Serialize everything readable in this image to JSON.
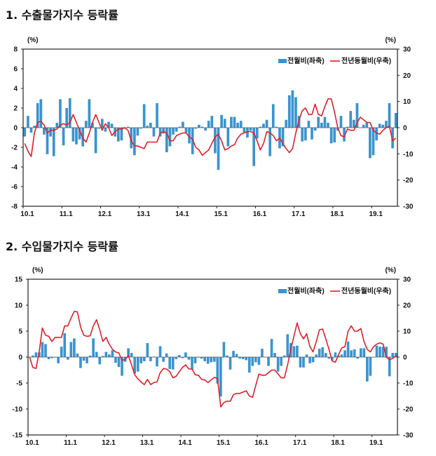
{
  "chart_data": [
    {
      "type": "bar+line",
      "title": "1. 수출물가지수 등락률",
      "left_unit": "(%)",
      "right_unit": "(%)",
      "ylim_left": [
        -8,
        8
      ],
      "yticks_left": [
        "8",
        "6",
        "4",
        "2",
        "0",
        "-2",
        "-4",
        "-6",
        "-8"
      ],
      "ylim_right": [
        -30,
        30
      ],
      "yticks_right": [
        "30",
        "20",
        "10",
        "0",
        "-10",
        "-20",
        "-30"
      ],
      "xtick_labels": [
        "10.1",
        "11.1",
        "12.1",
        "13.1",
        "14.1",
        "15.1",
        "16.1",
        "17.1",
        "18.1",
        "19.1"
      ],
      "x_start": "10.1",
      "legend_position": "top-right",
      "grid": false,
      "series": [
        {
          "name": "전월비(좌축)",
          "type": "bar",
          "axis": "left",
          "color": "#3a93d0",
          "values": [
            -0.9,
            1.2,
            -0.5,
            0.2,
            2.5,
            2.9,
            -0.7,
            -2.7,
            -0.9,
            -2.9,
            0.5,
            2.9,
            -1.8,
            2.0,
            3.0,
            -1.4,
            -1.7,
            -1.2,
            -1.9,
            0.7,
            2.9,
            0.5,
            -2.6,
            -0.1,
            0.9,
            -0.4,
            0.6,
            0.4,
            -0.9,
            -1.4,
            -1.3,
            -0.1,
            0.1,
            -2.1,
            -2.8,
            -0.8,
            -0.1,
            2.4,
            0.2,
            0.5,
            -0.9,
            2.5,
            -0.9,
            -0.6,
            -2.5,
            -1.9,
            -0.7,
            -0.4,
            0.1,
            0.6,
            -0.5,
            -1.6,
            -2.7,
            -0.1,
            0.3,
            0.1,
            -0.3,
            0.7,
            1.2,
            -2.6,
            -4.3,
            1.3,
            0.9,
            -1.9,
            1.1,
            1.1,
            0.5,
            0.7,
            -0.5,
            -1.0,
            -0.3,
            -3.9,
            -1.1,
            0.1,
            0.4,
            0.8,
            -2.9,
            2.4,
            0.1,
            -2.1,
            -1.9,
            0.8,
            3.3,
            3.8,
            3.1,
            1.2,
            -1.4,
            -1.3,
            0.7,
            -1.2,
            -0.3,
            1.1,
            0.5,
            1.1,
            0.5,
            -1.6,
            -1.5,
            -0.3,
            1.2,
            -1.4,
            0.1,
            1.7,
            0.8,
            2.5,
            0.0,
            0.3,
            0.5,
            -3.1,
            -2.8,
            -1.3,
            0.4,
            0.3,
            0.7,
            2.5,
            -2.1,
            1.5
          ]
        },
        {
          "name": "전년동월비(우축)",
          "type": "line",
          "axis": "right",
          "color": "#e0202a",
          "values": [
            -6,
            -9,
            -11,
            -2,
            2,
            2.5,
            1,
            -2,
            -1,
            -1,
            -0.5,
            1,
            1.5,
            1,
            2,
            5,
            2,
            -1,
            -4,
            -5.5,
            -2,
            2,
            5,
            2,
            -1,
            1.5,
            0,
            -3,
            -1.5,
            -0.5,
            -0.5,
            0,
            -1,
            -5,
            -7,
            -7,
            -7.5,
            -8,
            -5.5,
            -5.5,
            -5.5,
            -5.5,
            -2,
            -1.5,
            -2,
            -5,
            -5,
            -3,
            -2.5,
            -2,
            -2,
            -3.5,
            -4.5,
            -7.5,
            -8.5,
            -10.5,
            -9.5,
            -8.5,
            -6,
            -3.5,
            -2.5,
            -5,
            -8.5,
            -8,
            -7,
            -6.5,
            -4,
            -2.5,
            -2,
            -1.5,
            -1.5,
            -2,
            -5,
            -8.5,
            -6,
            -1.5,
            -2,
            -3,
            -5,
            -4,
            -6,
            -8,
            -9.5,
            -8,
            -2,
            3,
            6.5,
            7.5,
            5,
            5,
            9,
            5,
            4.5,
            8,
            11,
            11,
            6,
            0,
            -3,
            -3.5,
            -0.5,
            -1,
            -1,
            2,
            4,
            3,
            2,
            2,
            -1,
            -2,
            -2.5,
            -1,
            0,
            0.5,
            -5,
            -4
          ]
        }
      ]
    },
    {
      "type": "bar+line",
      "title": "2. 수입물가지수 등락률",
      "left_unit": "(%)",
      "right_unit": "(%)",
      "ylim_left": [
        -15,
        15
      ],
      "yticks_left": [
        "15",
        "10",
        "5",
        "0",
        "-5",
        "-10",
        "-15"
      ],
      "ylim_right": [
        -30,
        30
      ],
      "yticks_right": [
        "30",
        "20",
        "10",
        "0",
        "-10",
        "-20",
        "-30"
      ],
      "xtick_labels": [
        "10.1",
        "11.1",
        "12.1",
        "13.1",
        "14.1",
        "15.1",
        "16.1",
        "17.1",
        "18.1",
        "19.1"
      ],
      "x_start": "10.1",
      "legend_position": "top-right",
      "grid": false,
      "series": [
        {
          "name": "전월비(좌축)",
          "type": "bar",
          "axis": "left",
          "color": "#3a93d0",
          "values": [
            0.0,
            0.3,
            0.9,
            0.9,
            2.9,
            2.5,
            -0.4,
            -0.2,
            -0.1,
            -1.2,
            2.0,
            4.6,
            -0.5,
            2.9,
            3.6,
            0.7,
            -2.1,
            -0.7,
            -1.2,
            0.3,
            3.6,
            1.0,
            -1.4,
            0.2,
            1.0,
            0.5,
            1.3,
            -1.1,
            -1.9,
            -3.6,
            -0.9,
            1.7,
            0.8,
            -3.2,
            -2.8,
            -1.2,
            -0.8,
            2.7,
            -0.8,
            0.1,
            -1.8,
            2.1,
            -0.9,
            0.7,
            -2.3,
            -2.4,
            -0.4,
            0.4,
            -0.2,
            0.9,
            -0.5,
            -2.4,
            -1.2,
            -0.1,
            -0.3,
            -0.8,
            -1.3,
            -1.0,
            -0.9,
            -5.1,
            -7.6,
            2.9,
            0.3,
            -2.4,
            1.2,
            0.6,
            -0.3,
            -0.4,
            -0.6,
            -3.0,
            -1.7,
            -1.0,
            -1.5,
            1.6,
            0.0,
            -1.7,
            3.5,
            0.8,
            -2.8,
            -1.7,
            0.3,
            4.4,
            2.7,
            2.1,
            2.2,
            -2.0,
            -2.0,
            0.5,
            -1.2,
            -1.0,
            0.5,
            1.6,
            1.9,
            0.8,
            -0.3,
            -0.6,
            0.9,
            0.3,
            0.5,
            1.3,
            3.0,
            1.3,
            1.5,
            -0.3,
            1.7,
            1.7,
            -4.7,
            -3.6,
            0.0,
            2.2,
            2.0,
            2.0,
            2.0,
            -3.7,
            0.8,
            0.8
          ]
        },
        {
          "name": "전년동월비(우축)",
          "type": "line",
          "axis": "right",
          "color": "#e0202a",
          "values": [
            0,
            -4,
            -4.4,
            2,
            11.2,
            8.4,
            8,
            6,
            7.6,
            7.6,
            7.6,
            12,
            12,
            15,
            17.6,
            17.4,
            11.6,
            8.4,
            8,
            8.2,
            12,
            14.4,
            10.6,
            6,
            7.6,
            5,
            3,
            2,
            1.6,
            -1.2,
            -1,
            0.6,
            -3,
            -6.8,
            -8.4,
            -9.6,
            -10.6,
            -8.6,
            -10.6,
            -9.8,
            -9.6,
            -6,
            -4.4,
            -4.6,
            -5.6,
            -8,
            -7.4,
            -5.6,
            -4,
            -3,
            -4.6,
            -4.6,
            -6.8,
            -7,
            -8.6,
            -8.8,
            -9.8,
            -8.8,
            -7.8,
            -8.2,
            -19.2,
            -17.5,
            -17,
            -17,
            -14.5,
            -14,
            -14,
            -13.5,
            -13,
            -15,
            -15.5,
            -11,
            -6.5,
            -7,
            -7,
            -6,
            -5,
            -5,
            -6.5,
            -8,
            -8,
            -3,
            3,
            8,
            13.2,
            9,
            7,
            9,
            4,
            2,
            6,
            10.5,
            10.8,
            7,
            3,
            -1.5,
            -2,
            1,
            3.5,
            4,
            10,
            12,
            10,
            10,
            11,
            6,
            3,
            2,
            4,
            5,
            5.5,
            5,
            0,
            -1,
            -0.5,
            0.5
          ]
        }
      ]
    }
  ]
}
